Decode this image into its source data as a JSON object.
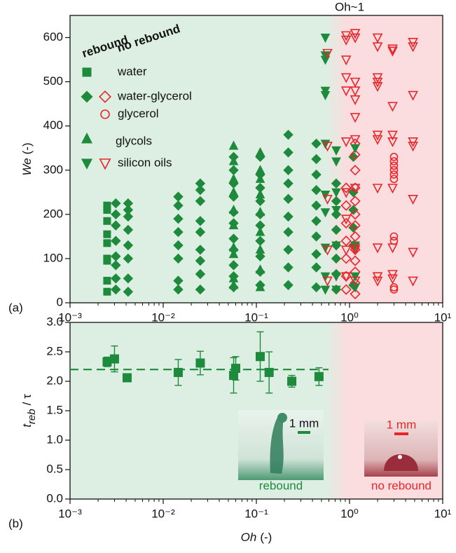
{
  "chart_data": [
    {
      "type": "scatter",
      "xscale": "log",
      "xlim": [
        0.001,
        10
      ],
      "ylim": [
        0,
        650
      ],
      "xticks": [
        {
          "value": 0.001,
          "label": "10⁻³"
        },
        {
          "value": 0.01,
          "label": "10⁻²"
        },
        {
          "value": 0.1,
          "label": "10⁻¹"
        },
        {
          "value": 1,
          "label": "10⁰"
        },
        {
          "value": 10,
          "label": "10¹"
        }
      ],
      "yticks": [
        0,
        100,
        200,
        300,
        400,
        500,
        600
      ],
      "ylabel": {
        "symbol": "We",
        "unit": "(-)"
      },
      "panel_label": "(a)",
      "annotation": "Oh~1",
      "rebound_label": "rebound",
      "no_rebound_label": "no rebound",
      "rebound_color": "#1e8a3c",
      "no_rebound_color": "#e8262a",
      "shading": {
        "rebound_color": "#dcefe2",
        "no_rebound_color": "#fbdcdf",
        "transition": [
          0.55,
          0.95
        ]
      },
      "series": [
        {
          "name": "water",
          "marker": "square",
          "rebound": {
            "x": [
              0.0025,
              0.0025,
              0.0025,
              0.0025,
              0.0025,
              0.0025,
              0.0025,
              0.0025,
              0.0025
            ],
            "y": [
              25,
              50,
              95,
              100,
              135,
              155,
              185,
              210,
              220
            ]
          }
        },
        {
          "name": "water-glycerol",
          "marker": "diamond",
          "rebound": {
            "x": [
              0.0031,
              0.0031,
              0.0031,
              0.0031,
              0.0031,
              0.0031,
              0.0031,
              0.0031,
              0.0042,
              0.0042,
              0.0042,
              0.0042,
              0.0042,
              0.0042,
              0.0042,
              0.0042,
              0.0145,
              0.0145,
              0.0145,
              0.0145,
              0.0145,
              0.0145,
              0.0145,
              0.0145,
              0.025,
              0.025,
              0.025,
              0.025,
              0.025,
              0.025,
              0.025,
              0.025,
              0.025,
              0.057,
              0.057,
              0.057,
              0.057,
              0.057,
              0.057,
              0.057,
              0.057,
              0.057,
              0.057,
              0.057,
              0.11,
              0.11,
              0.11,
              0.11,
              0.11,
              0.11,
              0.11,
              0.11,
              0.11,
              0.11,
              0.22,
              0.22,
              0.22,
              0.22,
              0.22,
              0.22,
              0.22,
              0.22,
              0.22,
              0.22,
              0.44,
              0.44,
              0.44,
              0.44,
              0.44,
              0.44,
              0.44,
              0.44,
              0.44,
              0.44,
              0.72,
              0.72,
              0.72,
              0.72,
              0.72,
              0.72,
              0.72,
              0.72,
              1.1,
              1.1,
              1.1,
              1.1,
              1.1,
              1.1
            ],
            "y": [
              30,
              55,
              85,
              105,
              140,
              175,
              200,
              225,
              25,
              55,
              100,
              130,
              165,
              195,
              210,
              225,
              30,
              50,
              100,
              130,
              160,
              190,
              220,
              240,
              30,
              65,
              95,
              120,
              160,
              185,
              230,
              255,
              270,
              35,
              60,
              85,
              120,
              145,
              180,
              205,
              240,
              270,
              300,
              330,
              40,
              70,
              105,
              140,
              175,
              200,
              230,
              260,
              290,
              330,
              40,
              80,
              120,
              160,
              195,
              235,
              270,
              300,
              340,
              380,
              35,
              80,
              110,
              150,
              185,
              220,
              255,
              290,
              325,
              360,
              30,
              65,
              100,
              130,
              165,
              200,
              230,
              270,
              40,
              130,
              170,
              210,
              250,
              330
            ]
          },
          "no_rebound": {
            "x": [
              0.92,
              0.92,
              0.92,
              0.92,
              0.92,
              0.92,
              0.92,
              1.15,
              1.15,
              1.15,
              1.15,
              1.15,
              1.15,
              1.15,
              1.15,
              1.15,
              1.15,
              1.15,
              1.15,
              1.15
            ],
            "y": [
              30,
              60,
              100,
              140,
              180,
              220,
              260,
              20,
              45,
              70,
              95,
              120,
              150,
              175,
              200,
              230,
              260,
              300,
              335,
              360
            ]
          }
        },
        {
          "name": "glycerol",
          "marker": "circle",
          "no_rebound": {
            "x": [
              3,
              3,
              3,
              3,
              3,
              3,
              3,
              3,
              3,
              3
            ],
            "y": [
              30,
              35,
              140,
              150,
              280,
              290,
              300,
              310,
              320,
              330
            ]
          }
        },
        {
          "name": "glycols",
          "marker": "triangle-up",
          "rebound": {
            "x": [
              0.057,
              0.057,
              0.057,
              0.057,
              0.057,
              0.057,
              0.057,
              0.057,
              0.057,
              0.057,
              0.11,
              0.11,
              0.11,
              0.11,
              0.11,
              0.11,
              0.11,
              0.11,
              0.11
            ],
            "y": [
              40,
              55,
              110,
              125,
              175,
              210,
              250,
              280,
              320,
              355,
              35,
              75,
              120,
              160,
              205,
              245,
              280,
              300,
              340
            ]
          }
        },
        {
          "name": "silicon oils",
          "marker": "triangle-down",
          "rebound": {
            "x": [
              0.55,
              0.55,
              0.55,
              0.55,
              0.55,
              0.55,
              0.55,
              0.55,
              0.55,
              0.55,
              0.55,
              0.72,
              0.72,
              0.72,
              0.72,
              0.72,
              0.72,
              0.72,
              1.15,
              1.15,
              1.15,
              1.15
            ],
            "y": [
              30,
              60,
              125,
              205,
              245,
              360,
              470,
              480,
              550,
              560,
              600,
              30,
              60,
              130,
              210,
              250,
              320,
              345,
              35,
              60,
              130,
              350
            ]
          },
          "no_rebound": {
            "x": [
              0.58,
              0.58,
              0.58,
              0.58,
              0.58,
              0.92,
              0.92,
              0.92,
              0.92,
              0.92,
              0.92,
              0.92,
              0.92,
              0.92,
              0.92,
              1.15,
              1.15,
              1.15,
              1.15,
              1.15,
              1.15,
              1.15,
              1.15,
              1.15,
              1.15,
              1.15,
              2,
              2,
              2,
              2,
              2,
              2,
              2,
              2,
              2,
              2,
              2,
              2.9,
              2.9,
              2.9,
              2.9,
              2.9,
              2.9,
              2.9,
              2.9,
              2.9,
              4.8,
              4.8,
              4.8,
              4.8,
              4.8,
              4.8,
              4.8,
              4.8
            ],
            "y": [
              50,
              120,
              235,
              355,
              565,
              60,
              120,
              190,
              250,
              365,
              480,
              510,
              550,
              595,
              605,
              50,
              120,
              125,
              260,
              370,
              420,
              460,
              480,
              500,
              600,
              610,
              50,
              60,
              125,
              260,
              370,
              380,
              490,
              500,
              510,
              580,
              600,
              55,
              65,
              125,
              260,
              365,
              380,
              445,
              570,
              575,
              50,
              115,
              235,
              355,
              365,
              470,
              580,
              590
            ]
          }
        }
      ]
    },
    {
      "type": "errorbar",
      "xscale": "log",
      "xlim": [
        0.001,
        10
      ],
      "ylim": [
        0,
        3
      ],
      "xticks": [
        {
          "value": 0.001,
          "label": "10⁻³"
        },
        {
          "value": 0.01,
          "label": "10⁻²"
        },
        {
          "value": 0.1,
          "label": "10⁻¹"
        },
        {
          "value": 1,
          "label": "10⁰"
        },
        {
          "value": 10,
          "label": "10¹"
        }
      ],
      "yticks": [
        {
          "value": 0,
          "label": "0.0"
        },
        0.5,
        {
          "value": 1,
          "label": "1.0"
        },
        1.5,
        {
          "value": 2,
          "label": "2.0"
        },
        2.5,
        {
          "value": 3,
          "label": "3.0"
        }
      ],
      "xlabel": {
        "symbol": "Oh",
        "unit": "(-)"
      },
      "ylabel": {
        "symbol": "t",
        "sub": "reb",
        "rest": "/ τ"
      },
      "panel_label": "(b)",
      "color": "#1e8a3c",
      "reference_line": 2.2,
      "shading": {
        "rebound_color": "#dcefe2",
        "no_rebound_color": "#fbdcdf",
        "transition": [
          0.55,
          0.95
        ]
      },
      "x": [
        0.0025,
        0.003,
        0.0041,
        0.0145,
        0.025,
        0.057,
        0.06,
        0.11,
        0.137,
        0.24,
        0.47
      ],
      "values": [
        2.33,
        2.38,
        2.06,
        2.15,
        2.31,
        2.1,
        2.22,
        2.42,
        2.15,
        2.0,
        2.08
      ],
      "errors": [
        0.08,
        0.22,
        0.05,
        0.22,
        0.2,
        0.3,
        0.2,
        0.42,
        0.35,
        0.1,
        0.15
      ],
      "insets": [
        {
          "label": "rebound",
          "scale": "1 mm"
        },
        {
          "label": "no rebound",
          "scale": "1 mm"
        }
      ]
    }
  ]
}
